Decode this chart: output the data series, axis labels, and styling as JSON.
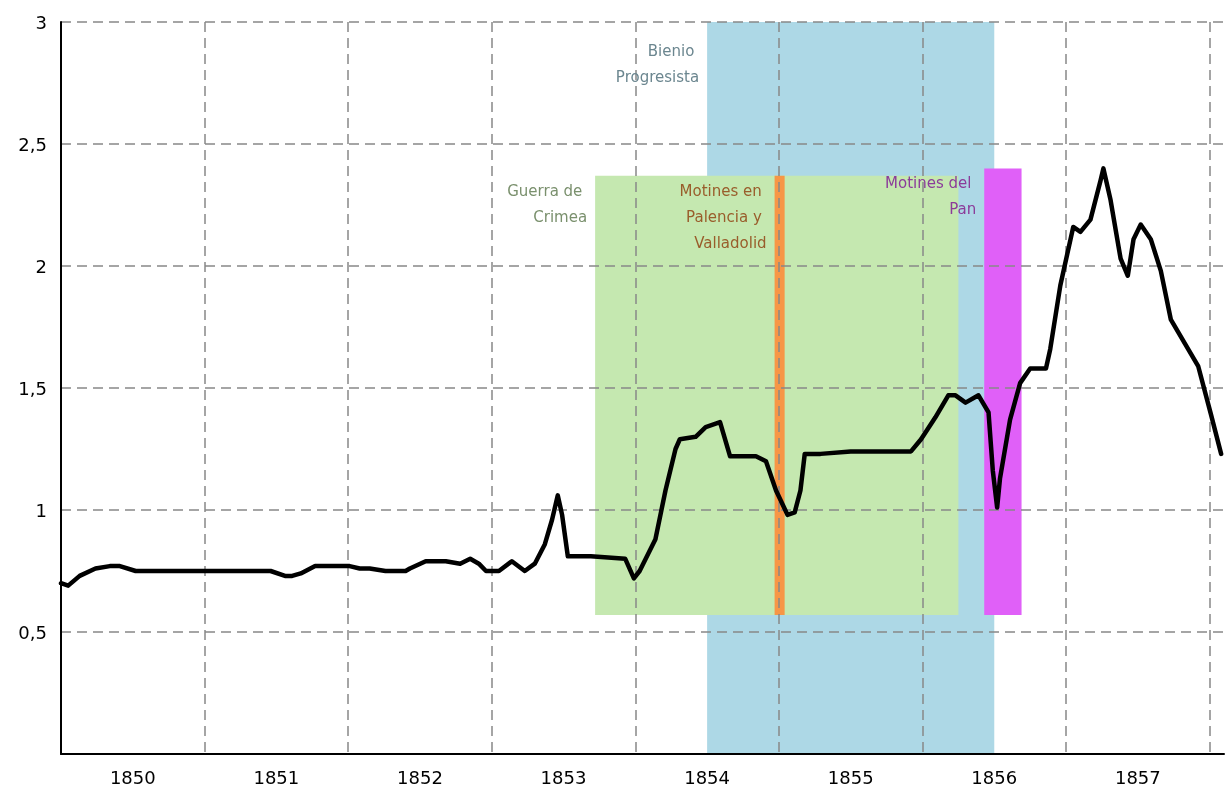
{
  "chart_data": {
    "type": "line",
    "x": [
      1850.0,
      1850.05,
      1850.13,
      1850.24,
      1850.34,
      1850.41,
      1850.52,
      1850.97,
      1851.46,
      1851.56,
      1851.61,
      1851.67,
      1851.77,
      1852.01,
      1852.08,
      1852.15,
      1852.26,
      1852.4,
      1852.43,
      1852.54,
      1852.68,
      1852.78,
      1852.85,
      1852.91,
      1852.96,
      1853.05,
      1853.14,
      1853.23,
      1853.3,
      1853.37,
      1853.42,
      1853.46,
      1853.49,
      1853.53,
      1853.69,
      1853.93,
      1853.99,
      1854.03,
      1854.14,
      1854.21,
      1854.28,
      1854.31,
      1854.42,
      1854.49,
      1854.59,
      1854.66,
      1854.84,
      1854.91,
      1854.98,
      1855.06,
      1855.11,
      1855.15,
      1855.18,
      1855.29,
      1855.5,
      1855.64,
      1855.92,
      1855.99,
      1856.09,
      1856.18,
      1856.23,
      1856.3,
      1856.39,
      1856.46,
      1856.49,
      1856.52,
      1856.54,
      1856.61,
      1856.68,
      1856.75,
      1856.86,
      1856.89,
      1856.96,
      1857.05,
      1857.1,
      1857.17,
      1857.24,
      1857.26,
      1857.31,
      1857.38,
      1857.43,
      1857.47,
      1857.52,
      1857.59,
      1857.66,
      1857.73,
      1857.83,
      1857.92,
      1858.01,
      1858.08
    ],
    "series": [
      {
        "color": "#000000",
        "values": [
          0.7,
          0.69,
          0.73,
          0.76,
          0.77,
          0.77,
          0.75,
          0.75,
          0.75,
          0.73,
          0.73,
          0.74,
          0.77,
          0.77,
          0.76,
          0.76,
          0.75,
          0.75,
          0.76,
          0.79,
          0.79,
          0.78,
          0.8,
          0.78,
          0.75,
          0.75,
          0.79,
          0.75,
          0.78,
          0.86,
          0.96,
          1.06,
          0.98,
          0.81,
          0.81,
          0.8,
          0.72,
          0.75,
          0.88,
          1.08,
          1.25,
          1.29,
          1.3,
          1.34,
          1.36,
          1.22,
          1.22,
          1.2,
          1.08,
          0.98,
          0.99,
          1.08,
          1.23,
          1.23,
          1.24,
          1.24,
          1.24,
          1.29,
          1.38,
          1.47,
          1.47,
          1.44,
          1.47,
          1.4,
          1.16,
          1.01,
          1.13,
          1.37,
          1.52,
          1.58,
          1.58,
          1.66,
          1.92,
          2.16,
          2.14,
          2.19,
          2.35,
          2.4,
          2.27,
          2.03,
          1.96,
          2.11,
          2.17,
          2.11,
          1.98,
          1.78,
          1.68,
          1.59,
          1.39,
          1.23
        ]
      }
    ],
    "xlim": [
      1850,
      1858.1
    ],
    "xticks": [
      {
        "value": 1850.5,
        "label": "1850"
      },
      {
        "value": 1851.5,
        "label": "1851"
      },
      {
        "value": 1852.5,
        "label": "1852"
      },
      {
        "value": 1853.5,
        "label": "1853"
      },
      {
        "value": 1854.5,
        "label": "1854"
      },
      {
        "value": 1855.5,
        "label": "1855"
      },
      {
        "value": 1856.5,
        "label": "1856"
      },
      {
        "value": 1857.5,
        "label": "1857"
      },
      {
        "value": 1851,
        "label": null
      },
      {
        "value": 1852,
        "label": null
      },
      {
        "value": 1853,
        "label": null
      },
      {
        "value": 1854,
        "label": null
      },
      {
        "value": 1855,
        "label": null
      },
      {
        "value": 1856,
        "label": null
      },
      {
        "value": 1857,
        "label": null
      },
      {
        "value": 1858,
        "label": null
      }
    ],
    "ylim": [
      0,
      3
    ],
    "yticks": [
      {
        "value": 0.5,
        "label": "0,5"
      },
      1,
      {
        "value": 1.5,
        "label": "1,5"
      },
      2,
      {
        "value": 2.5,
        "label": "2,5"
      },
      3
    ],
    "grid": true,
    "line_style": "solid",
    "marker": "none",
    "bands": [
      {
        "axis": "x",
        "from": 1854.5,
        "to": 1856.5,
        "label": "Bienio Progresista",
        "color": "#add8e6"
      },
      {
        "axis": "x",
        "from": 1853.72,
        "to": 1856.25,
        "label": "Guerra de Crimea",
        "color": "#c5e8b0"
      },
      {
        "axis": "x",
        "from": 1854.97,
        "to": 1855.04,
        "label": "Motines en Palencia y Valladolid",
        "color": "#f79646"
      },
      {
        "axis": "x",
        "from": 1856.43,
        "to": 1856.69,
        "label": "Motines del Pan",
        "color": "#e060f8"
      }
    ]
  }
}
